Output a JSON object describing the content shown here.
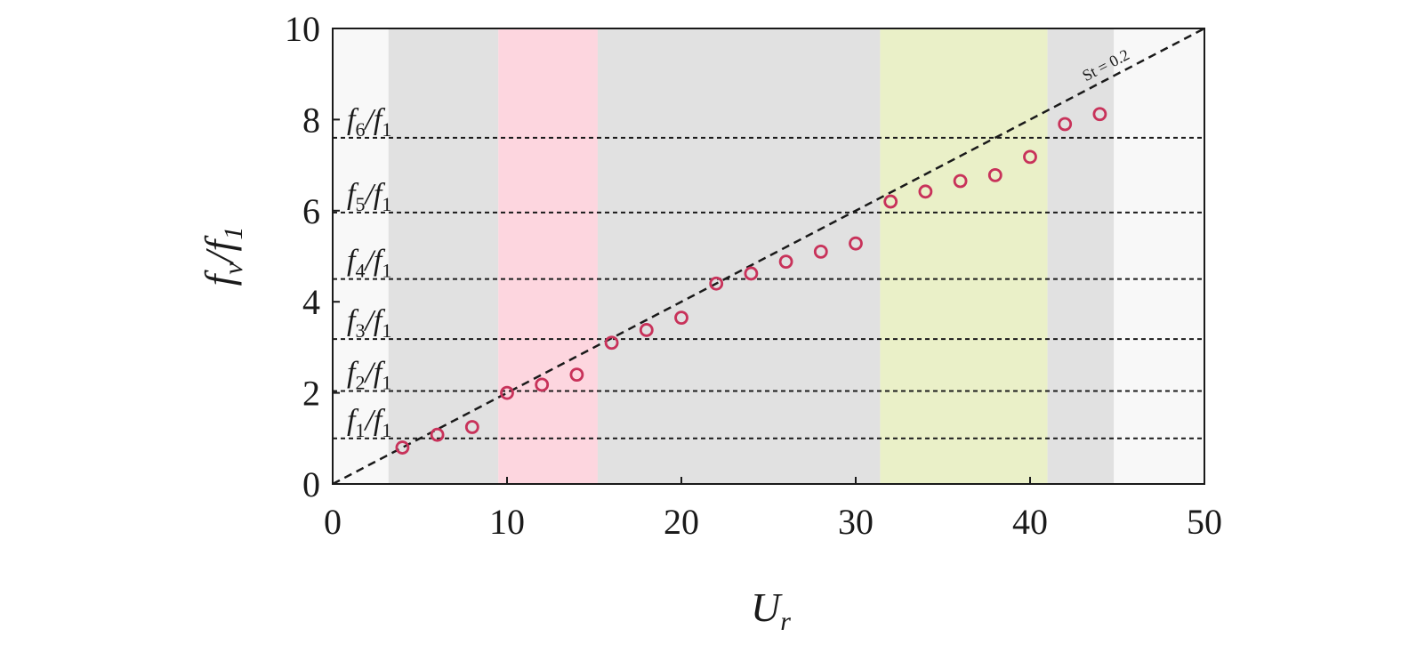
{
  "chart_data": {
    "type": "scatter",
    "xlabel": {
      "main": "U",
      "sub": "r"
    },
    "ylabel": {
      "main": "f",
      "sub": "v",
      "denom_main": "f",
      "denom_sub": "1"
    },
    "xlim": [
      0,
      50
    ],
    "ylim": [
      0,
      10
    ],
    "xticks": [
      0,
      10,
      20,
      30,
      40,
      50
    ],
    "yticks": [
      0,
      2,
      4,
      6,
      8,
      10
    ],
    "grid": false,
    "background_color": "#f8f8f8",
    "regions": [
      {
        "x": [
          3.2,
          9.5
        ],
        "color": "#e1e1e1"
      },
      {
        "x": [
          9.5,
          15.2
        ],
        "color": "#fdd6df"
      },
      {
        "x": [
          15.2,
          31.4
        ],
        "color": "#e1e1e1"
      },
      {
        "x": [
          31.4,
          41.0
        ],
        "color": "#eaf0c8"
      },
      {
        "x": [
          41.0,
          44.8
        ],
        "color": "#e1e1e1"
      }
    ],
    "frequency_ratio_lines": [
      {
        "main": "f",
        "sub": "1",
        "y": 1.0
      },
      {
        "main": "f",
        "sub": "2",
        "y": 2.04
      },
      {
        "main": "f",
        "sub": "3",
        "y": 3.18
      },
      {
        "main": "f",
        "sub": "4",
        "y": 4.5
      },
      {
        "main": "f",
        "sub": "5",
        "y": 5.96
      },
      {
        "main": "f",
        "sub": "6",
        "y": 7.6
      }
    ],
    "ratio_denominator": {
      "main": "f",
      "sub": "1"
    },
    "strouhal_line": {
      "label": "St = 0.2",
      "slope": 0.2
    },
    "marker_color": "#c8325a",
    "series": [
      {
        "x": [
          4,
          6,
          8,
          10,
          12,
          14,
          16,
          18,
          20,
          22,
          24,
          26,
          28,
          30,
          32,
          34,
          36,
          38,
          40,
          42,
          44
        ],
        "y": [
          0.8,
          1.08,
          1.25,
          2.0,
          2.18,
          2.4,
          3.1,
          3.38,
          3.65,
          4.4,
          4.62,
          4.88,
          5.1,
          5.28,
          6.2,
          6.42,
          6.65,
          6.78,
          7.18,
          7.9,
          8.12
        ]
      }
    ]
  }
}
